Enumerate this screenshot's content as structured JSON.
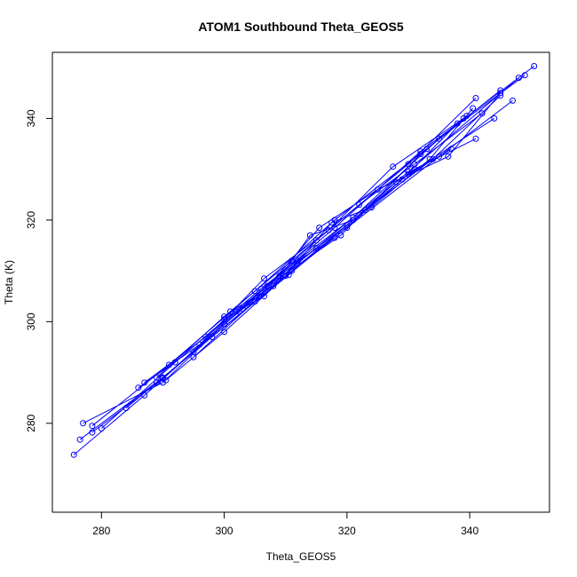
{
  "chart_data": {
    "type": "line",
    "title": "ATOM1 Southbound Theta_GEOS5",
    "xlabel": "Theta_GEOS5",
    "ylabel": "Theta (K)",
    "xlim": [
      272,
      353
    ],
    "ylim": [
      262.5,
      353
    ],
    "xticks": [
      280,
      300,
      320,
      340
    ],
    "yticks": [
      280,
      300,
      320,
      340
    ],
    "grid": false,
    "legend": "none",
    "color": "#0000ff",
    "marker": "open-circle",
    "series": [
      {
        "values": [
          [
            276.5,
            276.8
          ],
          [
            290,
            289
          ],
          [
            305,
            304
          ],
          [
            320,
            318.5
          ],
          [
            335,
            332.5
          ],
          [
            347,
            343.5
          ]
        ]
      },
      {
        "values": [
          [
            277,
            280
          ],
          [
            290,
            288
          ],
          [
            300,
            299.5
          ],
          [
            315,
            316
          ],
          [
            330,
            331
          ],
          [
            341,
            344
          ]
        ]
      },
      {
        "values": [
          [
            278.5,
            279.5
          ],
          [
            291,
            291.5
          ],
          [
            305,
            306
          ],
          [
            318,
            320
          ],
          [
            333,
            334
          ],
          [
            345,
            345.5
          ]
        ]
      },
      {
        "values": [
          [
            275.5,
            273.8
          ],
          [
            287,
            285.5
          ],
          [
            300,
            299.5
          ],
          [
            315,
            314.5
          ],
          [
            330,
            329.5
          ],
          [
            348,
            348
          ]
        ]
      },
      {
        "values": [
          [
            278.5,
            278.2
          ],
          [
            290,
            288.8
          ],
          [
            302,
            302
          ],
          [
            318,
            318.5
          ],
          [
            332,
            333.5
          ],
          [
            350.5,
            350.3
          ]
        ]
      },
      {
        "values": [
          [
            280,
            279
          ],
          [
            292,
            292
          ],
          [
            306,
            306.5
          ],
          [
            321,
            320.5
          ],
          [
            335,
            336
          ],
          [
            349,
            348.5
          ]
        ]
      },
      {
        "values": [
          [
            286,
            287
          ],
          [
            296,
            295.5
          ],
          [
            306.5,
            308.5
          ],
          [
            317,
            318
          ],
          [
            327.5,
            330.5
          ],
          [
            339,
            340
          ]
        ]
      },
      {
        "values": [
          [
            287,
            288
          ],
          [
            297,
            297
          ],
          [
            309,
            309
          ],
          [
            320,
            319
          ],
          [
            330,
            329
          ],
          [
            344,
            340
          ]
        ]
      },
      {
        "values": [
          [
            289,
            288
          ],
          [
            298,
            297
          ],
          [
            310.5,
            309.2
          ],
          [
            322,
            321
          ],
          [
            331,
            330
          ],
          [
            341,
            336
          ]
        ]
      },
      {
        "values": [
          [
            290.5,
            288.5
          ],
          [
            300,
            298
          ],
          [
            311,
            310
          ],
          [
            323,
            322
          ],
          [
            334,
            332
          ],
          [
            345,
            344.5
          ]
        ]
      },
      {
        "values": [
          [
            295,
            293
          ],
          [
            305,
            304
          ],
          [
            315.5,
            318.5
          ],
          [
            325,
            326
          ],
          [
            336.5,
            332.5
          ],
          [
            345,
            345
          ]
        ]
      },
      {
        "values": [
          [
            300,
            300.5
          ],
          [
            306.5,
            305
          ],
          [
            312,
            312
          ],
          [
            318,
            316.5
          ],
          [
            329,
            328
          ],
          [
            338,
            339
          ]
        ]
      },
      {
        "values": [
          [
            301,
            302
          ],
          [
            308,
            307
          ],
          [
            314,
            317
          ],
          [
            321,
            320
          ],
          [
            328,
            327.5
          ],
          [
            337,
            334
          ]
        ]
      },
      {
        "values": [
          [
            303,
            302.5
          ],
          [
            310,
            309
          ],
          [
            317.5,
            319.5
          ],
          [
            324,
            322.5
          ],
          [
            333.5,
            332
          ],
          [
            340.5,
            342
          ]
        ]
      },
      {
        "values": [
          [
            284,
            283
          ],
          [
            295,
            294
          ],
          [
            307,
            307
          ],
          [
            319,
            317
          ],
          [
            332,
            333
          ],
          [
            339.5,
            340.5
          ]
        ]
      },
      {
        "values": [
          [
            289,
            289
          ],
          [
            300,
            301
          ],
          [
            311,
            312
          ],
          [
            322,
            323
          ],
          [
            331,
            331
          ],
          [
            342,
            341
          ]
        ]
      }
    ]
  }
}
